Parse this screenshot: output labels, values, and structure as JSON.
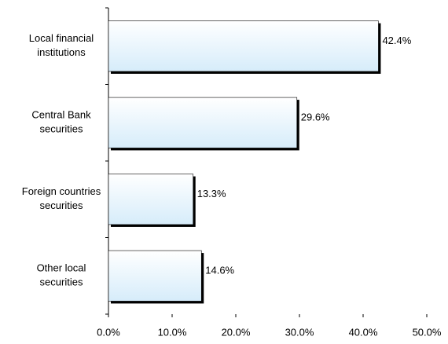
{
  "chart_data": {
    "type": "bar",
    "orientation": "horizontal",
    "categories": [
      [
        "Local financial",
        "institutions"
      ],
      [
        "Central Bank",
        "securities"
      ],
      [
        "Foreign countries",
        "securities"
      ],
      [
        "Other local",
        "securities"
      ]
    ],
    "values": [
      42.4,
      29.6,
      13.3,
      14.6
    ],
    "value_labels": [
      "42.4%",
      "29.6%",
      "13.3%",
      "14.6%"
    ],
    "xlim": [
      0,
      50
    ],
    "xticks": [
      {
        "value": 0,
        "label": "0.0%"
      },
      {
        "value": 10,
        "label": "10.0%"
      },
      {
        "value": 20,
        "label": "20.0%"
      },
      {
        "value": 30,
        "label": "30.0%"
      },
      {
        "value": 40,
        "label": "40.0%"
      },
      {
        "value": 50,
        "label": "50.0%"
      }
    ],
    "color": "#d6ecfa"
  }
}
